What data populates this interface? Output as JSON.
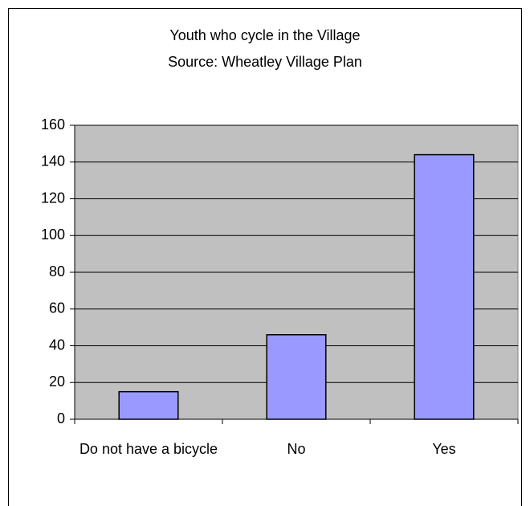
{
  "chart_data": {
    "type": "bar",
    "title": "Youth who cycle in the Village",
    "subtitle": "Source: Wheatley Village Plan",
    "categories": [
      "Do not have a bicycle",
      "No",
      "Yes"
    ],
    "values": [
      15,
      46,
      144
    ],
    "color": "#9999ff",
    "ylim": [
      0,
      160
    ],
    "yticks": [
      0,
      20,
      40,
      60,
      80,
      100,
      120,
      140,
      160
    ],
    "grid": true
  }
}
